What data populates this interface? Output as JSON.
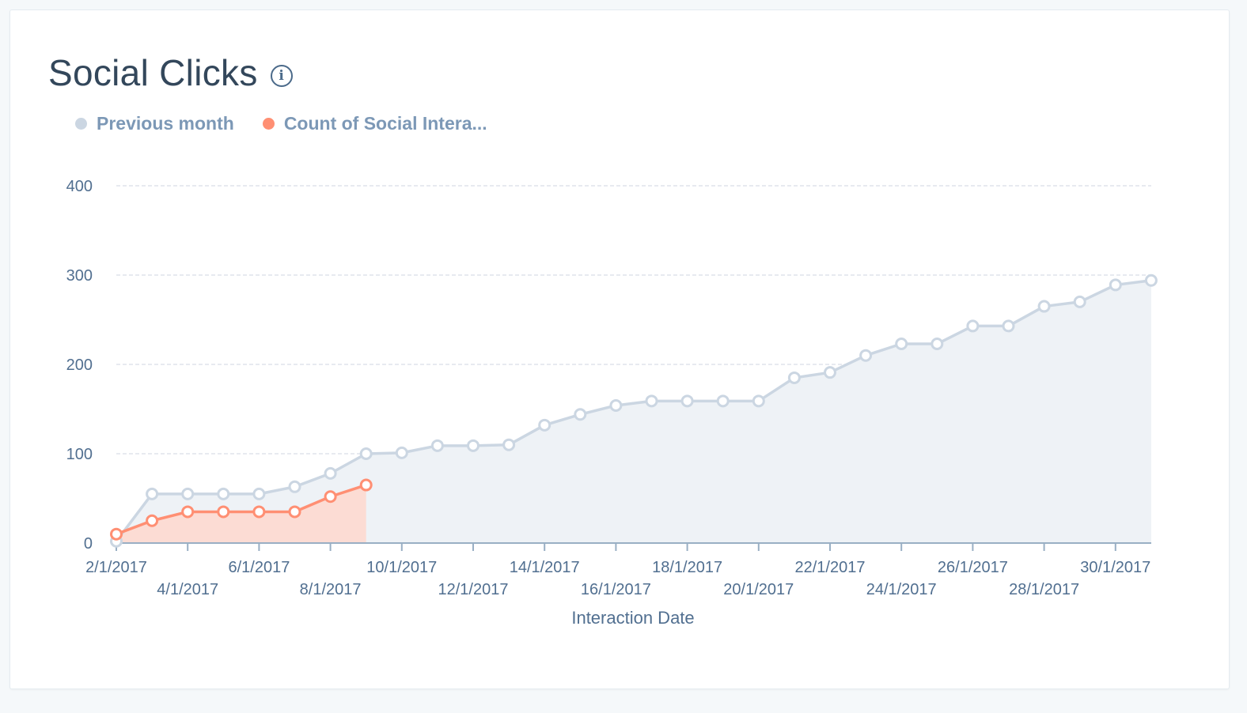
{
  "card": {
    "title": "Social Clicks",
    "info_icon": "info-icon"
  },
  "legend": [
    {
      "label": "Previous month",
      "color": "#cbd6e2"
    },
    {
      "label": "Count of Social Intera...",
      "color": "#ff8f73"
    }
  ],
  "chart_data": {
    "type": "area",
    "title": "Social Clicks",
    "xlabel": "Interaction Date",
    "ylabel": "",
    "ylim": [
      0,
      400
    ],
    "yticks": [
      0,
      100,
      200,
      300,
      400
    ],
    "grid": "horizontal-dashed",
    "legend_position": "top-left",
    "x_tick_labels": [
      "2/1/2017",
      "4/1/2017",
      "6/1/2017",
      "8/1/2017",
      "10/1/2017",
      "12/1/2017",
      "14/1/2017",
      "16/1/2017",
      "18/1/2017",
      "20/1/2017",
      "22/1/2017",
      "24/1/2017",
      "26/1/2017",
      "28/1/2017",
      "30/1/2017"
    ],
    "series": [
      {
        "name": "Previous month",
        "color": "#cbd6e2",
        "fill": "#eef2f6",
        "values": [
          2,
          55,
          55,
          55,
          55,
          63,
          78,
          100,
          101,
          109,
          109,
          110,
          132,
          144,
          154,
          159,
          159,
          159,
          159,
          185,
          191,
          210,
          223,
          223,
          243,
          243,
          265,
          270,
          289,
          294
        ]
      },
      {
        "name": "Count of Social Intera...",
        "color": "#ff8f73",
        "fill": "#fcdcd4",
        "values": [
          10,
          25,
          35,
          35,
          35,
          35,
          52,
          65
        ]
      }
    ]
  }
}
